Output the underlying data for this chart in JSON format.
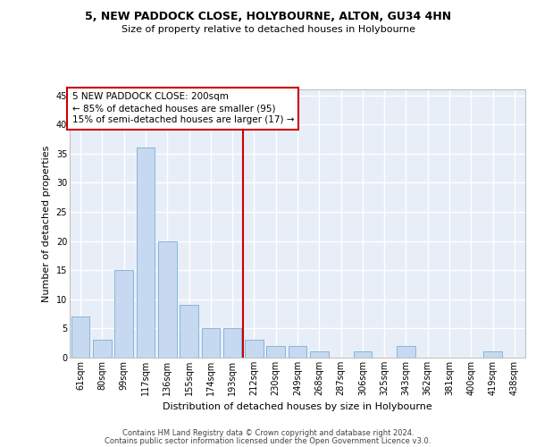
{
  "title1": "5, NEW PADDOCK CLOSE, HOLYBOURNE, ALTON, GU34 4HN",
  "title2": "Size of property relative to detached houses in Holybourne",
  "xlabel": "Distribution of detached houses by size in Holybourne",
  "ylabel": "Number of detached properties",
  "bin_labels": [
    "61sqm",
    "80sqm",
    "99sqm",
    "117sqm",
    "136sqm",
    "155sqm",
    "174sqm",
    "193sqm",
    "212sqm",
    "230sqm",
    "249sqm",
    "268sqm",
    "287sqm",
    "306sqm",
    "325sqm",
    "343sqm",
    "362sqm",
    "381sqm",
    "400sqm",
    "419sqm",
    "438sqm"
  ],
  "bar_values": [
    7,
    3,
    15,
    36,
    20,
    9,
    5,
    5,
    3,
    2,
    2,
    1,
    0,
    1,
    0,
    2,
    0,
    0,
    0,
    1,
    0
  ],
  "bar_color": "#c6d9f0",
  "bar_edge_color": "#7bafd4",
  "bg_color": "#e8eef8",
  "fig_bg_color": "#ffffff",
  "grid_color": "#ffffff",
  "vline_color": "#cc0000",
  "vline_x_pos": 7.5,
  "annotation_text": "5 NEW PADDOCK CLOSE: 200sqm\n← 85% of detached houses are smaller (95)\n15% of semi-detached houses are larger (17) →",
  "annotation_box_color": "#cc0000",
  "footer1": "Contains HM Land Registry data © Crown copyright and database right 2024.",
  "footer2": "Contains public sector information licensed under the Open Government Licence v3.0.",
  "yticks": [
    0,
    5,
    10,
    15,
    20,
    25,
    30,
    35,
    40,
    45
  ],
  "ylim": [
    0,
    46
  ],
  "title1_fontsize": 9,
  "title2_fontsize": 8,
  "tick_fontsize": 7,
  "ylabel_fontsize": 8,
  "xlabel_fontsize": 8,
  "annotation_fontsize": 7.5,
  "footer_fontsize": 6
}
